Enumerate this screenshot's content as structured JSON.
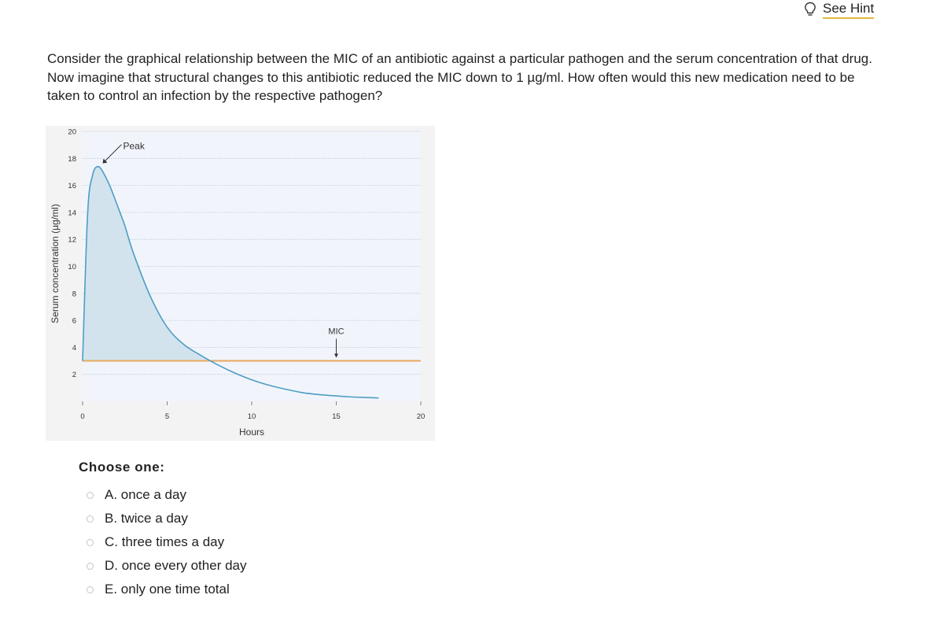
{
  "hint": {
    "label": "See Hint",
    "icon": "lightbulb-icon"
  },
  "question": {
    "text": "Consider the graphical relationship between the MIC of an antibiotic against a particular pathogen and the serum concentration of that drug. Now imagine that structural changes to this antibiotic reduced the MIC down to 1 µg/ml. How often would this new medication need to be taken to control an infection by the respective pathogen?"
  },
  "chart_data": {
    "type": "area",
    "xlabel": "Hours",
    "ylabel": "Serum concentration (µg/ml)",
    "xlim": [
      0,
      20
    ],
    "ylim": [
      0,
      20
    ],
    "xticks": [
      "0",
      "5",
      "10",
      "15",
      "20"
    ],
    "yticks": [
      "2",
      "4",
      "6",
      "8",
      "10",
      "12",
      "14",
      "16",
      "18",
      "20"
    ],
    "grid": "horizontal dotted",
    "series": [
      {
        "x": [
          0,
          0.3,
          0.6,
          0.9,
          1.2,
          1.6,
          2,
          2.5,
          3,
          4,
          5,
          6,
          7,
          8,
          9,
          10,
          11,
          12,
          13,
          14,
          15,
          16,
          17.5
        ],
        "y": [
          3,
          14,
          16.8,
          17.4,
          17,
          16,
          14.7,
          13,
          11,
          7.8,
          5.5,
          4.2,
          3.4,
          2.7,
          2.1,
          1.6,
          1.2,
          0.9,
          0.65,
          0.5,
          0.4,
          0.32,
          0.25
        ]
      }
    ],
    "mic_level": 3,
    "annotations": [
      {
        "text": "Peak",
        "x": 1,
        "y": 17.4
      },
      {
        "text": "MIC",
        "x": 15,
        "y": 3
      }
    ],
    "colors": {
      "curve": "#4f9dc4",
      "fill": "#d2e3ee",
      "mic_line": "#e9a85f",
      "plot_bg": "#f1f5fb",
      "grid": "#b9c6d6"
    }
  },
  "prompt": {
    "label": "Choose one:"
  },
  "options": [
    {
      "label": "A.  once a day"
    },
    {
      "label": "B.  twice a day"
    },
    {
      "label": "C.  three times a day"
    },
    {
      "label": "D.  once every other day"
    },
    {
      "label": "E.  only one time total"
    }
  ]
}
